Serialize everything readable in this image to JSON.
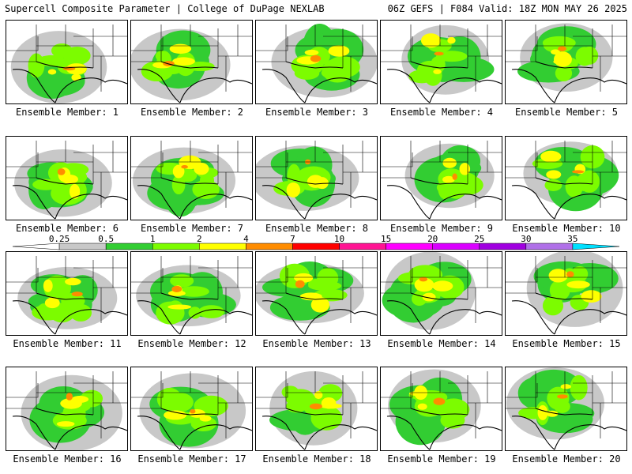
{
  "header": {
    "left": "Supercell Composite Parameter | College of DuPage NEXLAB",
    "right": "06Z GEFS | F084 Valid: 18Z MON MAY 26 2025"
  },
  "colorbar": {
    "labels": [
      "0.25",
      "0.5",
      "1",
      "2",
      "4",
      "7",
      "10",
      "15",
      "20",
      "25",
      "30",
      "35"
    ],
    "colors": [
      "#ffffff",
      "#c8c8c8",
      "#32cd32",
      "#7cfc00",
      "#ffff00",
      "#ff8c00",
      "#ff0000",
      "#ff1493",
      "#ff00ff",
      "#da00ff",
      "#a000e0",
      "#b070e8",
      "#00e0ff"
    ]
  },
  "panels": [
    {
      "label": "Ensemble Member: 1"
    },
    {
      "label": "Ensemble Member: 2"
    },
    {
      "label": "Ensemble Member: 3"
    },
    {
      "label": "Ensemble Member: 4"
    },
    {
      "label": "Ensemble Member: 5"
    },
    {
      "label": "Ensemble Member: 6"
    },
    {
      "label": "Ensemble Member: 7"
    },
    {
      "label": "Ensemble Member: 8"
    },
    {
      "label": "Ensemble Member: 9"
    },
    {
      "label": "Ensemble Member: 10"
    },
    {
      "label": "Ensemble Member: 11"
    },
    {
      "label": "Ensemble Member: 12"
    },
    {
      "label": "Ensemble Member: 13"
    },
    {
      "label": "Ensemble Member: 14"
    },
    {
      "label": "Ensemble Member: 15"
    },
    {
      "label": "Ensemble Member: 16"
    },
    {
      "label": "Ensemble Member: 17"
    },
    {
      "label": "Ensemble Member: 18"
    },
    {
      "label": "Ensemble Member: 19"
    },
    {
      "label": "Ensemble Member: 20"
    }
  ]
}
